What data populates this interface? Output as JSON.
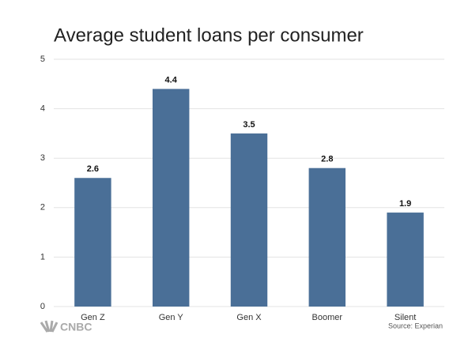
{
  "chart_data": {
    "type": "bar",
    "title": "Average student loans per consumer",
    "categories": [
      "Gen Z",
      "Gen Y",
      "Gen X",
      "Boomer",
      "Silent"
    ],
    "values": [
      2.6,
      4.4,
      3.5,
      2.8,
      1.9
    ],
    "color": "#4a6f97",
    "ylim": [
      0,
      5
    ],
    "yticks": [
      0,
      1,
      2,
      3,
      4,
      5
    ],
    "grid": true,
    "source": "Source: Experian",
    "logo": "CNBC"
  }
}
